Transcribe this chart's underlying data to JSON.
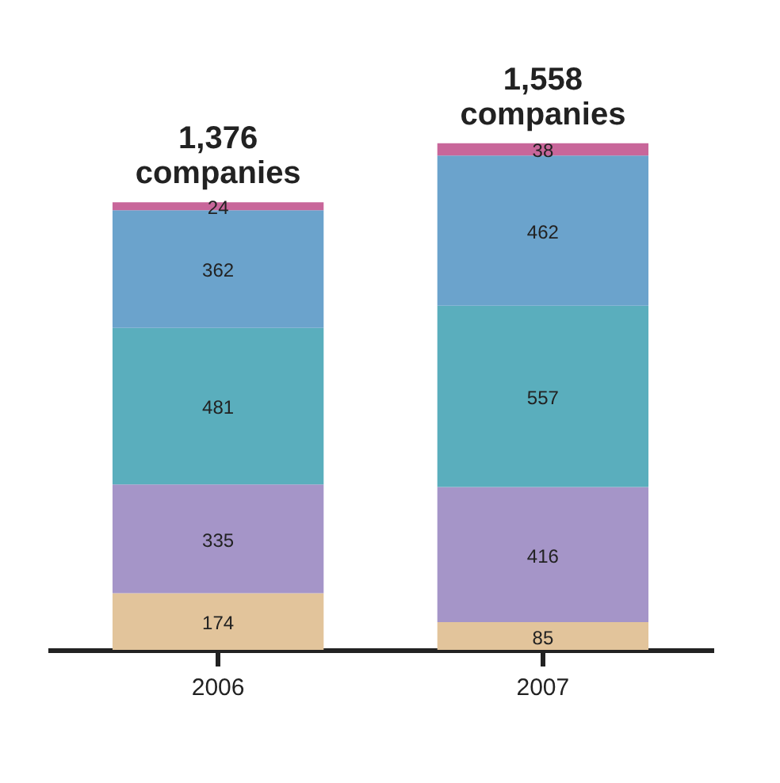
{
  "chart_data": {
    "type": "bar",
    "stacked": true,
    "categories": [
      "2006",
      "2007"
    ],
    "series": [
      {
        "color": "#e2c49b",
        "values": [
          174,
          85
        ]
      },
      {
        "color": "#a595c8",
        "values": [
          335,
          416
        ]
      },
      {
        "color": "#5aaebd",
        "values": [
          481,
          557
        ]
      },
      {
        "color": "#6ba3cc",
        "values": [
          362,
          462
        ]
      },
      {
        "color": "#c8669a",
        "values": [
          24,
          38
        ]
      }
    ],
    "data_labels": true,
    "totals": [
      "1,376 companies",
      "1,558 companies"
    ],
    "legend": false,
    "grid": false
  }
}
